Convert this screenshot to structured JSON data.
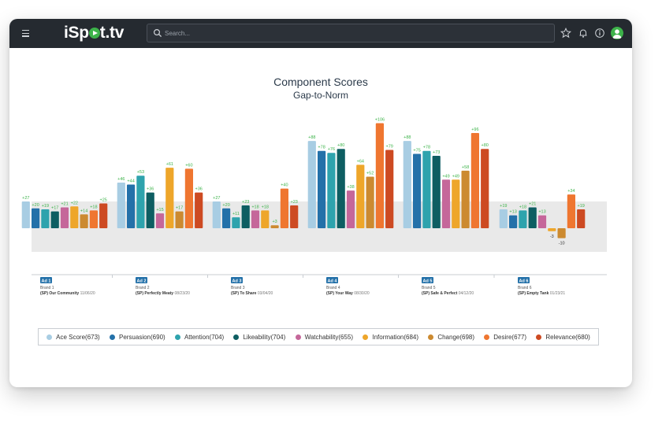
{
  "app": {
    "logo_text_before": "iSp",
    "logo_text_after": "t.tv"
  },
  "search": {
    "placeholder": "Search..."
  },
  "icons": [
    "menu-icon",
    "search-icon",
    "star-icon",
    "bell-icon",
    "info-icon",
    "user-avatar-icon"
  ],
  "colors": {
    "topbar": "#252a30",
    "brand_green": "#3db34a",
    "norm_band": "#e9e9e9",
    "positive_label": "#3db34a",
    "negative_label": "#333333"
  },
  "chart_data": {
    "type": "bar",
    "title": "Component Scores",
    "subtitle": "Gap-to-Norm",
    "grid": false,
    "legend_position": "bottom",
    "categories": [
      {
        "tag": "Ad 1",
        "brand": "Brand 1",
        "spot": "(SP) Our Community",
        "date": "11/06/20"
      },
      {
        "tag": "Ad 2",
        "brand": "Brand 2",
        "spot": "(SP) Perfectly Meaty",
        "date": "08/23/20"
      },
      {
        "tag": "Ad 3",
        "brand": "Brand 3",
        "spot": "(SP) To Share",
        "date": "03/04/20"
      },
      {
        "tag": "Ad 4",
        "brand": "Brand 4",
        "spot": "(SP) Your Way",
        "date": "08/30/20"
      },
      {
        "tag": "Ad 5",
        "brand": "Brand 5",
        "spot": "(SP) Safe & Perfect",
        "date": "04/12/20"
      },
      {
        "tag": "Ad 6",
        "brand": "Brand 6",
        "spot": "(SP) Empty Tank",
        "date": "01/23/21"
      }
    ],
    "series": [
      {
        "name": "Ace Score(673)",
        "color": "#a8cde3",
        "values": [
          27,
          46,
          27,
          88,
          88,
          19
        ]
      },
      {
        "name": "Persuasion(690)",
        "color": "#2471a9",
        "values": [
          20,
          44,
          20,
          78,
          75,
          13
        ]
      },
      {
        "name": "Attention(704)",
        "color": "#2ea3ad",
        "values": [
          19,
          53,
          11,
          76,
          78,
          18
        ]
      },
      {
        "name": "Likeability(704)",
        "color": "#0e5e62",
        "values": [
          17,
          36,
          23,
          80,
          73,
          21
        ]
      },
      {
        "name": "Watchability(655)",
        "color": "#c5679a",
        "values": [
          21,
          15,
          18,
          38,
          49,
          13
        ]
      },
      {
        "name": "Information(684)",
        "color": "#eea62a",
        "values": [
          22,
          61,
          18,
          64,
          49,
          -3
        ]
      },
      {
        "name": "Change(698)",
        "color": "#cc8a30",
        "values": [
          14,
          17,
          3,
          52,
          58,
          -10
        ]
      },
      {
        "name": "Desire(677)",
        "color": "#ef7630",
        "values": [
          18,
          60,
          40,
          106,
          96,
          34
        ]
      },
      {
        "name": "Relevance(680)",
        "color": "#cd4a22",
        "values": [
          25,
          36,
          23,
          79,
          80,
          19
        ]
      }
    ]
  }
}
